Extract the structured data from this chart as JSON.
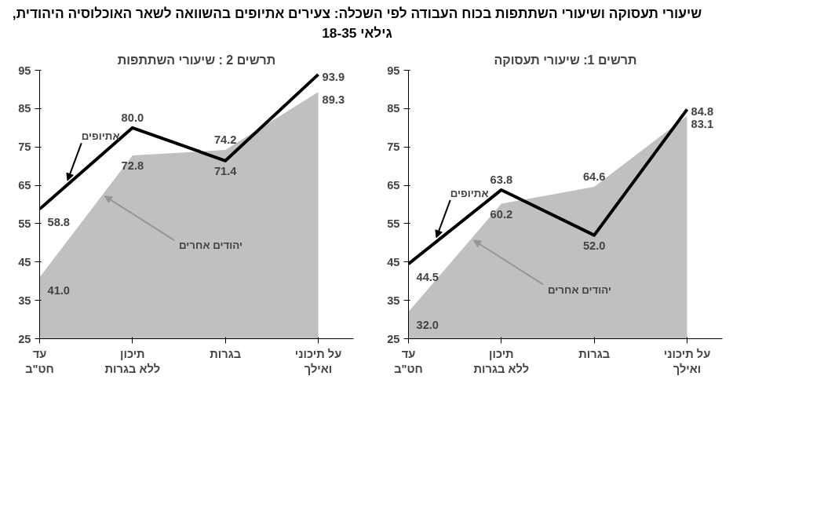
{
  "chart_data": [
    {
      "type": "line",
      "title": "שיעורי תעסוקה ושיעורי השתתפות בכוח העבודה לפי השכלה: צעירים אתיופים בהשוואה לשאר האוכלוסיה היהודית, גילאי 18-35",
      "subtitle": "תרשים 1: שיעורי תעסוקה",
      "categories": [
        "עד\nחט\"ב",
        "תיכון\nללא בגרות",
        "בגרות",
        "על תיכוני\nואילך"
      ],
      "series": [
        {
          "name": "יהודים אחרים",
          "type": "area",
          "color": "#c0c0c0",
          "values": [
            32.0,
            60.2,
            64.6,
            83.1
          ],
          "value_labels": [
            "32.0",
            "60.2",
            "64.6",
            "83.1"
          ]
        },
        {
          "name": "אתיופים",
          "color": "#000000",
          "values": [
            44.5,
            63.8,
            52.0,
            84.8
          ],
          "value_labels": [
            "44.5",
            "63.8",
            "52.0",
            "84.8"
          ]
        }
      ],
      "ylim": [
        25,
        95
      ],
      "yticks": [
        25,
        35,
        45,
        55,
        65,
        75,
        85,
        95
      ],
      "grid": false,
      "legend": false
    },
    {
      "type": "line",
      "subtitle": "תרשים 2 : שיעורי השתתפות",
      "categories": [
        "עד\nחט\"ב",
        "תיכון\nללא בגרות",
        "בגרות",
        "על תיכוני\nואילך"
      ],
      "series": [
        {
          "name": "יהודים אחרים",
          "type": "area",
          "color": "#c0c0c0",
          "values": [
            41.0,
            72.8,
            74.2,
            89.3
          ],
          "value_labels": [
            "41.0",
            "72.8",
            "74.2",
            "89.3"
          ]
        },
        {
          "name": "אתיופים",
          "color": "#000000",
          "values": [
            58.8,
            80.0,
            71.4,
            93.9
          ],
          "value_labels": [
            "58.8",
            "80.0",
            "71.4",
            "93.9"
          ]
        }
      ],
      "ylim": [
        25,
        95
      ],
      "yticks": [
        25,
        35,
        45,
        55,
        65,
        75,
        85,
        95
      ],
      "grid": false,
      "legend": false
    }
  ]
}
